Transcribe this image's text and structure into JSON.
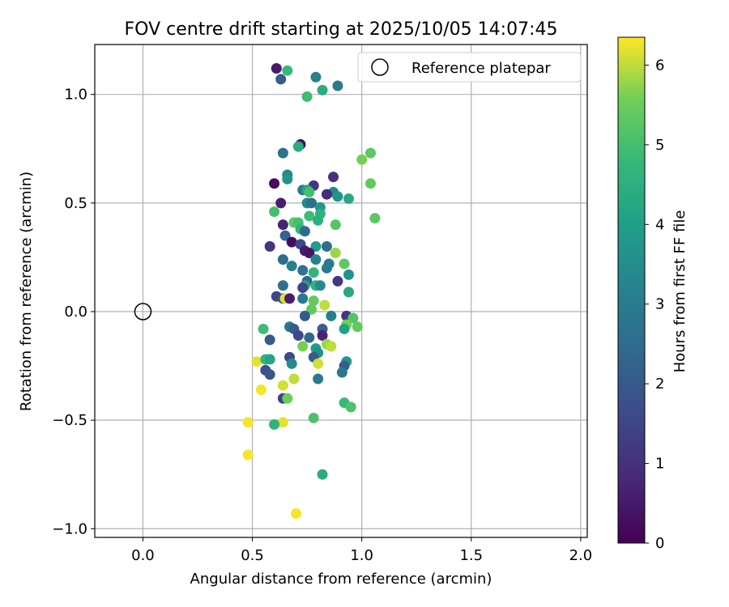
{
  "chart_data": {
    "type": "scatter",
    "title": "FOV centre drift starting at 2025/10/05 14:07:45",
    "xlabel": "Angular distance from reference (arcmin)",
    "ylabel": "Rotation from reference (arcmin)",
    "xlim": [
      -0.22,
      2.03
    ],
    "ylim": [
      -1.04,
      1.23
    ],
    "xticks": [
      0.0,
      0.5,
      1.0,
      1.5,
      2.0
    ],
    "xtick_labels": [
      "0.0",
      "0.5",
      "1.0",
      "1.5",
      "2.0"
    ],
    "yticks": [
      -1.0,
      -0.5,
      0.0,
      0.5,
      1.0
    ],
    "ytick_labels": [
      "−1.0",
      "−0.5",
      "0.0",
      "0.5",
      "1.0"
    ],
    "grid": true,
    "legend": {
      "label": "Reference platepar",
      "position": "top-right"
    },
    "reference_point": {
      "x": 0.0,
      "y": 0.0
    },
    "colorbar": {
      "label": "Hours from first FF file",
      "range": [
        0,
        6.35
      ],
      "ticks": [
        0,
        1,
        2,
        3,
        4,
        5,
        6
      ],
      "tick_labels": [
        "0",
        "1",
        "2",
        "3",
        "4",
        "5",
        "6"
      ],
      "colormap": "viridis"
    },
    "points": [
      {
        "x": 0.61,
        "y": 1.12,
        "h": 0.5
      },
      {
        "x": 0.66,
        "y": 1.11,
        "h": 4.8
      },
      {
        "x": 0.63,
        "y": 1.07,
        "h": 2.1
      },
      {
        "x": 0.79,
        "y": 1.08,
        "h": 3.2
      },
      {
        "x": 0.82,
        "y": 1.02,
        "h": 4.4
      },
      {
        "x": 0.89,
        "y": 1.04,
        "h": 3.0
      },
      {
        "x": 0.75,
        "y": 0.99,
        "h": 4.9
      },
      {
        "x": 0.72,
        "y": 0.77,
        "h": 0.3
      },
      {
        "x": 0.71,
        "y": 0.76,
        "h": 4.4
      },
      {
        "x": 0.64,
        "y": 0.73,
        "h": 2.7
      },
      {
        "x": 1.04,
        "y": 0.73,
        "h": 5.3
      },
      {
        "x": 1.0,
        "y": 0.7,
        "h": 5.6
      },
      {
        "x": 0.87,
        "y": 0.62,
        "h": 1.0
      },
      {
        "x": 0.66,
        "y": 0.63,
        "h": 3.3
      },
      {
        "x": 0.66,
        "y": 0.61,
        "h": 3.7
      },
      {
        "x": 0.6,
        "y": 0.59,
        "h": 0.2
      },
      {
        "x": 1.04,
        "y": 0.59,
        "h": 5.4
      },
      {
        "x": 0.78,
        "y": 0.58,
        "h": 1.1
      },
      {
        "x": 0.73,
        "y": 0.56,
        "h": 2.9
      },
      {
        "x": 0.75,
        "y": 0.56,
        "h": 4.2
      },
      {
        "x": 0.76,
        "y": 0.55,
        "h": 5.0
      },
      {
        "x": 0.87,
        "y": 0.55,
        "h": 3.3
      },
      {
        "x": 0.84,
        "y": 0.54,
        "h": 0.9
      },
      {
        "x": 0.89,
        "y": 0.53,
        "h": 3.7
      },
      {
        "x": 0.94,
        "y": 0.52,
        "h": 4.3
      },
      {
        "x": 0.63,
        "y": 0.5,
        "h": 0.6
      },
      {
        "x": 0.75,
        "y": 0.5,
        "h": 3.4
      },
      {
        "x": 0.77,
        "y": 0.5,
        "h": 2.6
      },
      {
        "x": 0.81,
        "y": 0.48,
        "h": 3.8
      },
      {
        "x": 0.6,
        "y": 0.46,
        "h": 5.0
      },
      {
        "x": 1.06,
        "y": 0.43,
        "h": 5.3
      },
      {
        "x": 0.81,
        "y": 0.45,
        "h": 4.6
      },
      {
        "x": 0.76,
        "y": 0.44,
        "h": 4.9
      },
      {
        "x": 0.8,
        "y": 0.42,
        "h": 4.5
      },
      {
        "x": 0.69,
        "y": 0.41,
        "h": 5.3
      },
      {
        "x": 0.64,
        "y": 0.4,
        "h": 0.7
      },
      {
        "x": 0.71,
        "y": 0.41,
        "h": 5.0
      },
      {
        "x": 0.88,
        "y": 0.4,
        "h": 5.2
      },
      {
        "x": 0.72,
        "y": 0.38,
        "h": 4.7
      },
      {
        "x": 0.74,
        "y": 0.37,
        "h": 2.4
      },
      {
        "x": 0.65,
        "y": 0.35,
        "h": 2.2
      },
      {
        "x": 0.68,
        "y": 0.32,
        "h": 0.2
      },
      {
        "x": 0.72,
        "y": 0.31,
        "h": 1.6
      },
      {
        "x": 0.58,
        "y": 0.3,
        "h": 1.1
      },
      {
        "x": 0.79,
        "y": 0.3,
        "h": 3.9
      },
      {
        "x": 0.84,
        "y": 0.3,
        "h": 2.6
      },
      {
        "x": 0.74,
        "y": 0.28,
        "h": 0.6
      },
      {
        "x": 0.76,
        "y": 0.27,
        "h": 0.4
      },
      {
        "x": 0.88,
        "y": 0.27,
        "h": 5.8
      },
      {
        "x": 0.64,
        "y": 0.24,
        "h": 2.5
      },
      {
        "x": 0.79,
        "y": 0.24,
        "h": 3.2
      },
      {
        "x": 0.85,
        "y": 0.22,
        "h": 3.0
      },
      {
        "x": 0.92,
        "y": 0.22,
        "h": 5.3
      },
      {
        "x": 0.68,
        "y": 0.21,
        "h": 3.1
      },
      {
        "x": 0.84,
        "y": 0.2,
        "h": 2.9
      },
      {
        "x": 0.73,
        "y": 0.19,
        "h": 2.7
      },
      {
        "x": 0.78,
        "y": 0.18,
        "h": 4.7
      },
      {
        "x": 0.94,
        "y": 0.17,
        "h": 3.6
      },
      {
        "x": 0.75,
        "y": 0.14,
        "h": 2.3
      },
      {
        "x": 0.89,
        "y": 0.14,
        "h": 1.2
      },
      {
        "x": 0.64,
        "y": 0.12,
        "h": 2.6
      },
      {
        "x": 0.74,
        "y": 0.12,
        "h": 4.2
      },
      {
        "x": 0.79,
        "y": 0.12,
        "h": 4.6
      },
      {
        "x": 0.81,
        "y": 0.12,
        "h": 3.4
      },
      {
        "x": 0.73,
        "y": 0.11,
        "h": 1.5
      },
      {
        "x": 0.94,
        "y": 0.09,
        "h": 4.3
      },
      {
        "x": 0.61,
        "y": 0.07,
        "h": 1.5
      },
      {
        "x": 0.64,
        "y": 0.06,
        "h": 1.9
      },
      {
        "x": 0.65,
        "y": 0.06,
        "h": 6.2
      },
      {
        "x": 0.67,
        "y": 0.06,
        "h": 0.6
      },
      {
        "x": 0.73,
        "y": 0.06,
        "h": 2.9
      },
      {
        "x": 0.78,
        "y": 0.05,
        "h": 5.4
      },
      {
        "x": 0.83,
        "y": 0.03,
        "h": 6.0
      },
      {
        "x": 0.77,
        "y": 0.01,
        "h": 5.4
      },
      {
        "x": 0.74,
        "y": -0.02,
        "h": 2.0
      },
      {
        "x": 0.86,
        "y": -0.02,
        "h": 3.1
      },
      {
        "x": 0.93,
        "y": -0.02,
        "h": 1.1
      },
      {
        "x": 0.96,
        "y": -0.03,
        "h": 5.2
      },
      {
        "x": 0.93,
        "y": -0.06,
        "h": 5.6
      },
      {
        "x": 0.98,
        "y": -0.07,
        "h": 5.4
      },
      {
        "x": 0.55,
        "y": -0.08,
        "h": 4.9
      },
      {
        "x": 0.67,
        "y": -0.07,
        "h": 2.9
      },
      {
        "x": 0.69,
        "y": -0.08,
        "h": 2.1
      },
      {
        "x": 0.82,
        "y": -0.08,
        "h": 2.2
      },
      {
        "x": 0.92,
        "y": -0.08,
        "h": 4.1
      },
      {
        "x": 0.71,
        "y": -0.11,
        "h": 1.6
      },
      {
        "x": 0.82,
        "y": -0.11,
        "h": 0.7
      },
      {
        "x": 0.58,
        "y": -0.13,
        "h": 2.0
      },
      {
        "x": 0.76,
        "y": -0.12,
        "h": 2.4
      },
      {
        "x": 0.84,
        "y": -0.15,
        "h": 5.8
      },
      {
        "x": 0.86,
        "y": -0.16,
        "h": 6.0
      },
      {
        "x": 0.73,
        "y": -0.16,
        "h": 5.6
      },
      {
        "x": 0.79,
        "y": -0.17,
        "h": 4.0
      },
      {
        "x": 0.8,
        "y": -0.19,
        "h": 3.6
      },
      {
        "x": 0.78,
        "y": -0.21,
        "h": 2.0
      },
      {
        "x": 0.67,
        "y": -0.21,
        "h": 1.6
      },
      {
        "x": 0.52,
        "y": -0.23,
        "h": 6.2
      },
      {
        "x": 0.56,
        "y": -0.22,
        "h": 4.7
      },
      {
        "x": 0.58,
        "y": -0.22,
        "h": 4.2
      },
      {
        "x": 0.93,
        "y": -0.23,
        "h": 3.8
      },
      {
        "x": 0.92,
        "y": -0.25,
        "h": 2.1
      },
      {
        "x": 0.68,
        "y": -0.24,
        "h": 3.5
      },
      {
        "x": 0.8,
        "y": -0.24,
        "h": 6.1
      },
      {
        "x": 0.56,
        "y": -0.27,
        "h": 1.7
      },
      {
        "x": 0.91,
        "y": -0.28,
        "h": 2.8
      },
      {
        "x": 0.58,
        "y": -0.29,
        "h": 1.9
      },
      {
        "x": 0.8,
        "y": -0.31,
        "h": 2.9
      },
      {
        "x": 0.69,
        "y": -0.31,
        "h": 6.0
      },
      {
        "x": 0.64,
        "y": -0.34,
        "h": 6.1
      },
      {
        "x": 0.54,
        "y": -0.36,
        "h": 6.3
      },
      {
        "x": 0.64,
        "y": -0.4,
        "h": 1.4
      },
      {
        "x": 0.66,
        "y": -0.4,
        "h": 5.5
      },
      {
        "x": 0.92,
        "y": -0.42,
        "h": 4.8
      },
      {
        "x": 0.95,
        "y": -0.44,
        "h": 5.1
      },
      {
        "x": 0.78,
        "y": -0.49,
        "h": 5.1
      },
      {
        "x": 0.48,
        "y": -0.51,
        "h": 6.3
      },
      {
        "x": 0.64,
        "y": -0.51,
        "h": 6.2
      },
      {
        "x": 0.6,
        "y": -0.52,
        "h": 4.6
      },
      {
        "x": 0.48,
        "y": -0.66,
        "h": 6.3
      },
      {
        "x": 0.82,
        "y": -0.75,
        "h": 4.4
      },
      {
        "x": 0.7,
        "y": -0.93,
        "h": 6.3
      }
    ]
  }
}
